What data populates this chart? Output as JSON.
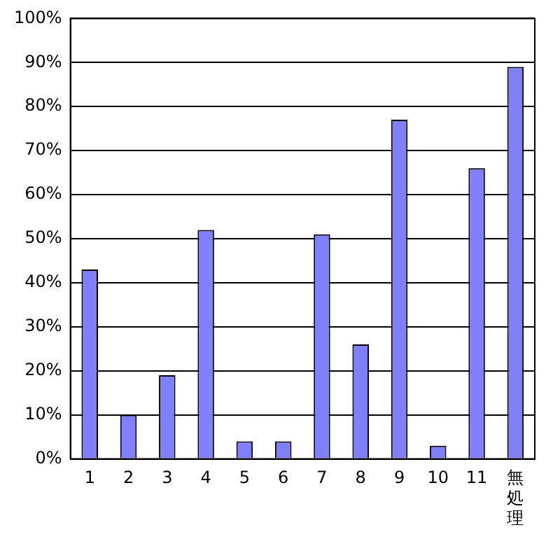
{
  "chart_data": {
    "type": "bar",
    "categories": [
      "1",
      "2",
      "3",
      "4",
      "5",
      "6",
      "7",
      "8",
      "9",
      "10",
      "11",
      "無処理"
    ],
    "values": [
      43,
      10,
      19,
      52,
      4,
      4,
      51,
      26,
      77,
      3,
      66,
      89
    ],
    "color": "#8080ff",
    "ylim": [
      0,
      100
    ],
    "yticks": [
      {
        "value": 0,
        "label": "0%"
      },
      {
        "value": 10,
        "label": "10%"
      },
      {
        "value": 20,
        "label": "20%"
      },
      {
        "value": 30,
        "label": "30%"
      },
      {
        "value": 40,
        "label": "40%"
      },
      {
        "value": 50,
        "label": "50%"
      },
      {
        "value": 60,
        "label": "60%"
      },
      {
        "value": 70,
        "label": "70%"
      },
      {
        "value": 80,
        "label": "80%"
      },
      {
        "value": 90,
        "label": "90%"
      },
      {
        "value": 100,
        "label": "100%"
      }
    ],
    "grid": "y",
    "legend": false
  }
}
